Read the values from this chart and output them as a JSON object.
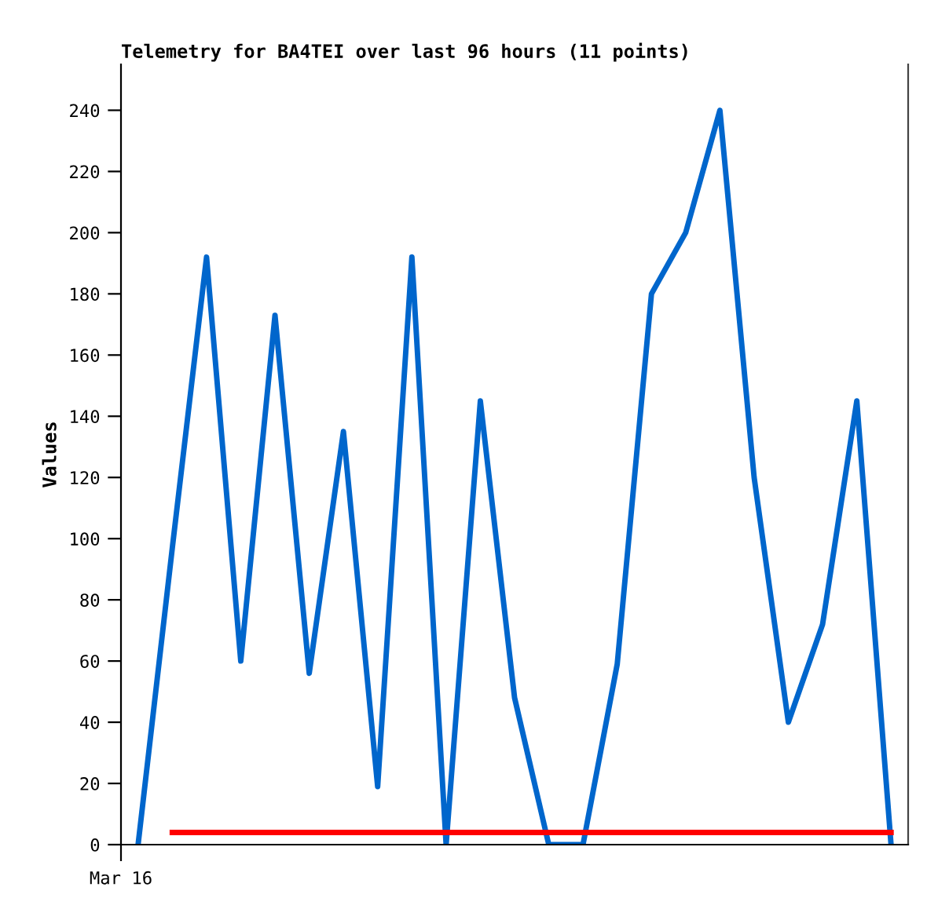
{
  "chart_data": {
    "type": "line",
    "title": "Telemetry for BA4TEI over last 96 hours (11 points)",
    "ylabel": "Values",
    "annotations": [
      "Mar 16"
    ],
    "categories": [
      null,
      null,
      null,
      null,
      null,
      null,
      null,
      null,
      null,
      null,
      null,
      null,
      null,
      null,
      null,
      null,
      null,
      null,
      null,
      null,
      null,
      null,
      null
    ],
    "ylim": [
      0,
      255
    ],
    "yticks": [
      0,
      20,
      40,
      60,
      80,
      100,
      120,
      140,
      160,
      180,
      200,
      220,
      240
    ],
    "marker": "none",
    "line_style": "solid",
    "series": [
      {
        "color": "#0066cc",
        "values": [
          0,
          97,
          192,
          60,
          173,
          56,
          135,
          19,
          192,
          0,
          145,
          48,
          0,
          0,
          59,
          180,
          200,
          240,
          120,
          40,
          72,
          145,
          0
        ]
      },
      {
        "color": "#ff0000",
        "values": [
          null,
          4,
          4,
          4,
          4,
          4,
          4,
          4,
          4,
          4,
          4,
          4,
          4,
          4,
          4,
          4,
          4,
          4,
          4,
          4,
          4,
          4,
          4
        ]
      }
    ]
  }
}
